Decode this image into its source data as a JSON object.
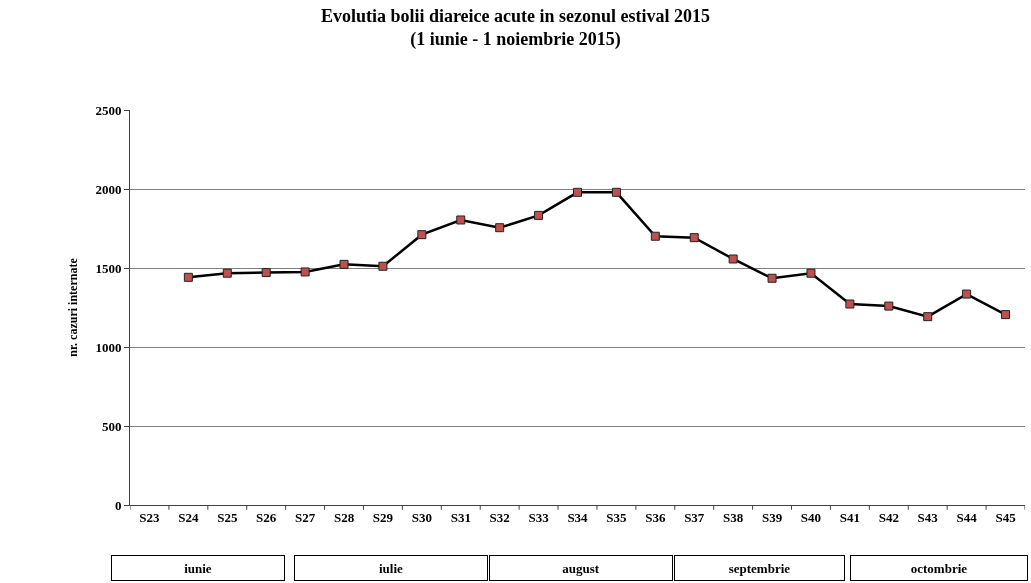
{
  "chart_data": {
    "type": "line",
    "title": "Evolutia bolii diareice acute in sezonul estival 2015\n(1 iunie - 1 noiembrie 2015)",
    "ylabel": "nr. cazuri internate",
    "categories": [
      "S23",
      "S24",
      "S25",
      "S26",
      "S27",
      "S28",
      "S29",
      "S30",
      "S31",
      "S32",
      "S33",
      "S34",
      "S35",
      "S36",
      "S37",
      "S38",
      "S39",
      "S40",
      "S41",
      "S42",
      "S43",
      "S44",
      "S45"
    ],
    "series": [
      {
        "color": "#c0504d",
        "values": [
          null,
          1441,
          1467,
          1471,
          1475,
          1523,
          1511,
          1711,
          1804,
          1755,
          1833,
          1979,
          1979,
          1701,
          1692,
          1557,
          1435,
          1467,
          1272,
          1259,
          1192,
          1335,
          1205
        ]
      }
    ],
    "ylim": [
      0,
      2500
    ],
    "yticks": [
      0,
      500,
      1000,
      1500,
      2000,
      2500
    ],
    "grid": "y",
    "legend": false,
    "marker": "square",
    "line_style": "solid",
    "annotations": [
      "iunie",
      "iulie",
      "august",
      "septembrie",
      "octombrie"
    ]
  }
}
